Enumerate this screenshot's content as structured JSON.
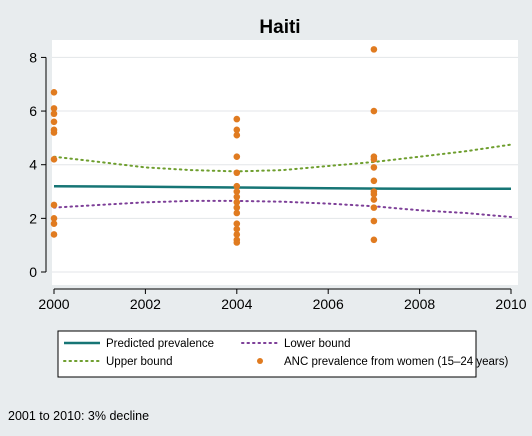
{
  "chart_data": {
    "type": "scatter",
    "title": "Haiti",
    "xlabel": "",
    "ylabel": "",
    "xlim": [
      2000,
      2010
    ],
    "ylim": [
      0,
      8.5
    ],
    "x_ticks": [
      2000,
      2002,
      2004,
      2006,
      2008,
      2010
    ],
    "y_ticks": [
      0,
      2,
      4,
      6,
      8
    ],
    "grid": "horizontal",
    "legend_position": "bottom",
    "series": [
      {
        "name": "Predicted prevalence",
        "kind": "line",
        "style": "solid",
        "color": "#167575",
        "points": [
          [
            2000,
            3.2
          ],
          [
            2002,
            3.18
          ],
          [
            2004,
            3.15
          ],
          [
            2006,
            3.12
          ],
          [
            2008,
            3.1
          ],
          [
            2010,
            3.1
          ]
        ]
      },
      {
        "name": "Lower bound",
        "kind": "line",
        "style": "dotted",
        "color": "#7d3f98",
        "points": [
          [
            2000,
            2.4
          ],
          [
            2001,
            2.5
          ],
          [
            2002,
            2.6
          ],
          [
            2003,
            2.65
          ],
          [
            2004,
            2.65
          ],
          [
            2005,
            2.62
          ],
          [
            2006,
            2.55
          ],
          [
            2007,
            2.45
          ],
          [
            2008,
            2.3
          ],
          [
            2009,
            2.2
          ],
          [
            2010,
            2.05
          ]
        ]
      },
      {
        "name": "Upper bound",
        "kind": "line",
        "style": "dotted",
        "color": "#6e9e2e",
        "points": [
          [
            2000,
            4.3
          ],
          [
            2001,
            4.1
          ],
          [
            2002,
            3.9
          ],
          [
            2003,
            3.8
          ],
          [
            2004,
            3.75
          ],
          [
            2005,
            3.8
          ],
          [
            2006,
            3.95
          ],
          [
            2007,
            4.1
          ],
          [
            2008,
            4.3
          ],
          [
            2009,
            4.5
          ],
          [
            2010,
            4.75
          ]
        ]
      },
      {
        "name": "ANC prevalence from women (15–24 years)",
        "kind": "scatter",
        "color": "#e07b20",
        "points": [
          [
            2000,
            6.7
          ],
          [
            2000,
            6.1
          ],
          [
            2000,
            5.9
          ],
          [
            2000,
            5.6
          ],
          [
            2000,
            5.3
          ],
          [
            2000,
            5.2
          ],
          [
            2000,
            4.2
          ],
          [
            2000,
            2.5
          ],
          [
            2000,
            2.0
          ],
          [
            2000,
            1.8
          ],
          [
            2000,
            1.4
          ],
          [
            2004,
            5.7
          ],
          [
            2004,
            5.3
          ],
          [
            2004,
            5.1
          ],
          [
            2004,
            4.3
          ],
          [
            2004,
            3.7
          ],
          [
            2004,
            3.2
          ],
          [
            2004,
            3.0
          ],
          [
            2004,
            2.8
          ],
          [
            2004,
            2.6
          ],
          [
            2004,
            2.4
          ],
          [
            2004,
            2.2
          ],
          [
            2004,
            1.8
          ],
          [
            2004,
            1.6
          ],
          [
            2004,
            1.4
          ],
          [
            2004,
            1.2
          ],
          [
            2004,
            1.1
          ],
          [
            2007,
            8.3
          ],
          [
            2007,
            6.0
          ],
          [
            2007,
            4.3
          ],
          [
            2007,
            4.2
          ],
          [
            2007,
            3.9
          ],
          [
            2007,
            3.4
          ],
          [
            2007,
            3.0
          ],
          [
            2007,
            2.9
          ],
          [
            2007,
            2.7
          ],
          [
            2007,
            2.4
          ],
          [
            2007,
            1.9
          ],
          [
            2007,
            1.2
          ]
        ]
      }
    ],
    "legend": [
      {
        "label": "Predicted prevalence",
        "style": "solid",
        "color": "#167575"
      },
      {
        "label": "Lower bound",
        "style": "dotted",
        "color": "#7d3f98"
      },
      {
        "label": "Upper bound",
        "style": "dotted",
        "color": "#6e9e2e"
      },
      {
        "label": "ANC prevalence from women (15–24 years)",
        "style": "dot",
        "color": "#e07b20"
      }
    ],
    "note": "2001 to 2010: 3% decline"
  }
}
